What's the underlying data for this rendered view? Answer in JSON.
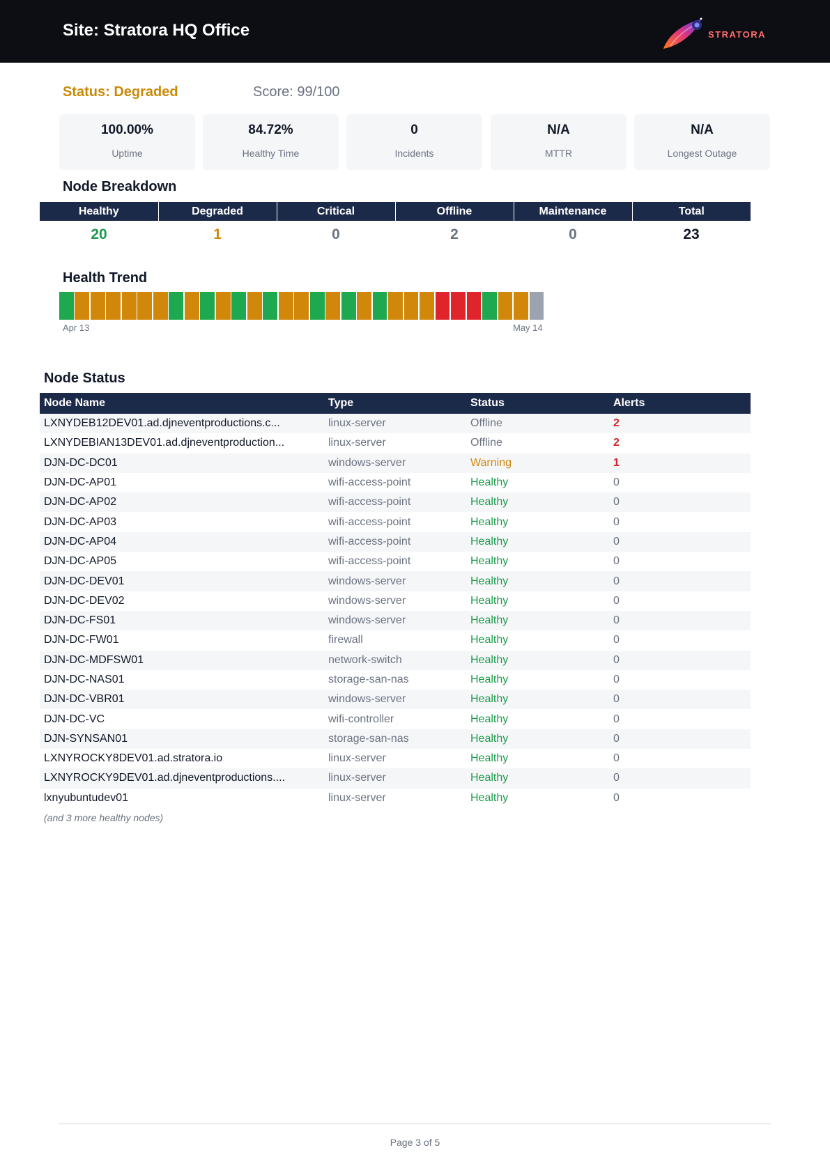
{
  "header": {
    "title": "Site: Stratora HQ Office",
    "logo_text": "STRATORA"
  },
  "summary": {
    "status": "Status: Degraded",
    "score": "Score: 99/100",
    "status_color": "#c98a0a"
  },
  "metrics": [
    {
      "value": "100.00%",
      "label": "Uptime"
    },
    {
      "value": "84.72%",
      "label": "Healthy Time"
    },
    {
      "value": "0",
      "label": "Incidents"
    },
    {
      "value": "N/A",
      "label": "MTTR"
    },
    {
      "value": "N/A",
      "label": "Longest Outage"
    }
  ],
  "breakdown": {
    "title": "Node Breakdown",
    "columns": [
      {
        "label": "Healthy",
        "value": "20",
        "color": "#1d9a4b"
      },
      {
        "label": "Degraded",
        "value": "1",
        "color": "#d0870a"
      },
      {
        "label": "Critical",
        "value": "0",
        "color": "#6b7280"
      },
      {
        "label": "Offline",
        "value": "2",
        "color": "#6b7280"
      },
      {
        "label": "Maintenance",
        "value": "0",
        "color": "#6b7280"
      },
      {
        "label": "Total",
        "value": "23",
        "color": "#111827"
      }
    ]
  },
  "trend": {
    "title": "Health Trend",
    "start_label": "Apr 13",
    "end_label": "May 14",
    "days": [
      "healthy",
      "degraded",
      "degraded",
      "degraded",
      "degraded",
      "degraded",
      "degraded",
      "healthy",
      "degraded",
      "healthy",
      "degraded",
      "healthy",
      "degraded",
      "healthy",
      "degraded",
      "degraded",
      "healthy",
      "degraded",
      "healthy",
      "degraded",
      "healthy",
      "degraded",
      "degraded",
      "degraded",
      "critical",
      "critical",
      "critical",
      "healthy",
      "degraded",
      "degraded",
      "unknown"
    ],
    "colors": {
      "healthy": "#1ea84f",
      "degraded": "#d0870a",
      "critical": "#e0242b",
      "unknown": "#9ca3af"
    }
  },
  "node_status": {
    "title": "Node Status",
    "headers": [
      "Node Name",
      "Type",
      "Status",
      "Alerts"
    ],
    "status_colors": {
      "Offline": "#6b7280",
      "Warning": "#d0870a",
      "Healthy": "#1d9a4b"
    },
    "alert_colors": {
      "high": "#d0242b",
      "zero": "#6b7280"
    },
    "rows": [
      {
        "name": "LXNYDEB12DEV01.ad.djneventproductions.c...",
        "type": "linux-server",
        "status": "Offline",
        "alerts": "2"
      },
      {
        "name": "LXNYDEBIAN13DEV01.ad.djneventproduction...",
        "type": "linux-server",
        "status": "Offline",
        "alerts": "2"
      },
      {
        "name": "DJN-DC-DC01",
        "type": "windows-server",
        "status": "Warning",
        "alerts": "1"
      },
      {
        "name": "DJN-DC-AP01",
        "type": "wifi-access-point",
        "status": "Healthy",
        "alerts": "0"
      },
      {
        "name": "DJN-DC-AP02",
        "type": "wifi-access-point",
        "status": "Healthy",
        "alerts": "0"
      },
      {
        "name": "DJN-DC-AP03",
        "type": "wifi-access-point",
        "status": "Healthy",
        "alerts": "0"
      },
      {
        "name": "DJN-DC-AP04",
        "type": "wifi-access-point",
        "status": "Healthy",
        "alerts": "0"
      },
      {
        "name": "DJN-DC-AP05",
        "type": "wifi-access-point",
        "status": "Healthy",
        "alerts": "0"
      },
      {
        "name": "DJN-DC-DEV01",
        "type": "windows-server",
        "status": "Healthy",
        "alerts": "0"
      },
      {
        "name": "DJN-DC-DEV02",
        "type": "windows-server",
        "status": "Healthy",
        "alerts": "0"
      },
      {
        "name": "DJN-DC-FS01",
        "type": "windows-server",
        "status": "Healthy",
        "alerts": "0"
      },
      {
        "name": "DJN-DC-FW01",
        "type": "firewall",
        "status": "Healthy",
        "alerts": "0"
      },
      {
        "name": "DJN-DC-MDFSW01",
        "type": "network-switch",
        "status": "Healthy",
        "alerts": "0"
      },
      {
        "name": "DJN-DC-NAS01",
        "type": "storage-san-nas",
        "status": "Healthy",
        "alerts": "0"
      },
      {
        "name": "DJN-DC-VBR01",
        "type": "windows-server",
        "status": "Healthy",
        "alerts": "0"
      },
      {
        "name": "DJN-DC-VC",
        "type": "wifi-controller",
        "status": "Healthy",
        "alerts": "0"
      },
      {
        "name": "DJN-SYNSAN01",
        "type": "storage-san-nas",
        "status": "Healthy",
        "alerts": "0"
      },
      {
        "name": "LXNYROCKY8DEV01.ad.stratora.io",
        "type": "linux-server",
        "status": "Healthy",
        "alerts": "0"
      },
      {
        "name": "LXNYROCKY9DEV01.ad.djneventproductions....",
        "type": "linux-server",
        "status": "Healthy",
        "alerts": "0"
      },
      {
        "name": "lxnyubuntudev01",
        "type": "linux-server",
        "status": "Healthy",
        "alerts": "0"
      }
    ],
    "more_note": "(and 3 more healthy nodes)"
  },
  "footer": {
    "page": "Page 3 of 5"
  }
}
